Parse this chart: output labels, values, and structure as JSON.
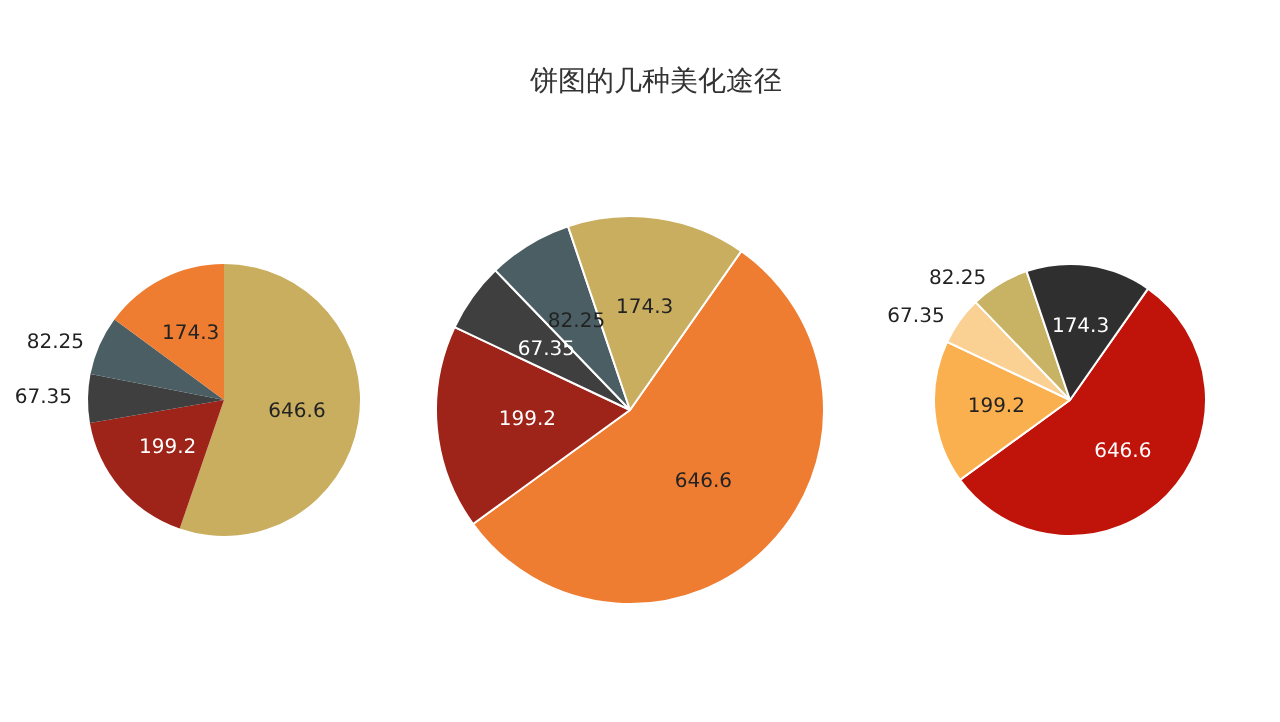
{
  "chart_data": [
    {
      "type": "pie",
      "categories": [
        null,
        null,
        null,
        null,
        null
      ],
      "values": [
        646.6,
        199.2,
        67.35,
        82.25,
        174.3
      ],
      "colors": [
        "#c9ae5f",
        "#9e2318",
        "#3f3f3f",
        "#4a5e63",
        "#ee7d31"
      ],
      "data_labels": true
    },
    {
      "type": "pie",
      "title": "饼图的几种美化途径",
      "categories": [
        null,
        null,
        null,
        null,
        null
      ],
      "values": [
        646.6,
        199.2,
        67.35,
        82.25,
        174.3
      ],
      "colors": [
        "#ee7d31",
        "#9e2318",
        "#3f3f3f",
        "#4a5e63",
        "#c9ae5f"
      ],
      "data_labels": true
    },
    {
      "type": "pie",
      "categories": [
        null,
        null,
        null,
        null,
        null
      ],
      "values": [
        646.6,
        199.2,
        67.35,
        82.25,
        174.3
      ],
      "colors": [
        "#c0140a",
        "#fbb04f",
        "#fbd093",
        "#c8b264",
        "#2f2f2f"
      ],
      "data_labels": true
    }
  ]
}
